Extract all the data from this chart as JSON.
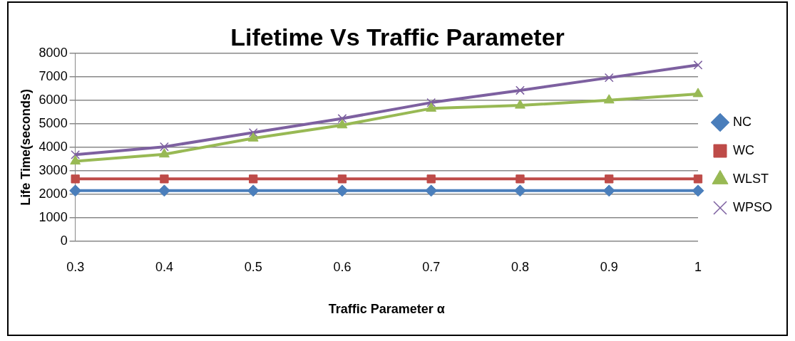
{
  "chart_data": {
    "type": "line",
    "title": "Lifetime Vs Traffic Parameter",
    "xlabel": "Traffic Parameter α",
    "ylabel": "Life Time(seconds)",
    "categories": [
      "0.3",
      "0.4",
      "0.5",
      "0.6",
      "0.7",
      "0.8",
      "0.9",
      "1"
    ],
    "series": [
      {
        "name": "NC",
        "color": "#4a7ebb",
        "marker": "diamond",
        "values": [
          2150,
          2150,
          2150,
          2150,
          2150,
          2150,
          2150,
          2150
        ]
      },
      {
        "name": "WC",
        "color": "#be4b48",
        "marker": "square",
        "values": [
          2650,
          2650,
          2650,
          2650,
          2650,
          2650,
          2650,
          2650
        ]
      },
      {
        "name": "WLST",
        "color": "#98b954",
        "marker": "triangle",
        "values": [
          3400,
          3700,
          4380,
          4940,
          5650,
          5780,
          6000,
          6270
        ]
      },
      {
        "name": "WPSO",
        "color": "#7d60a0",
        "marker": "cross",
        "values": [
          3680,
          4020,
          4620,
          5220,
          5900,
          6420,
          6960,
          7500
        ]
      }
    ],
    "ylim": [
      0,
      8000
    ],
    "yticks": [
      0,
      1000,
      2000,
      3000,
      4000,
      5000,
      6000,
      7000,
      8000
    ],
    "grid": "y",
    "legend": "right"
  }
}
